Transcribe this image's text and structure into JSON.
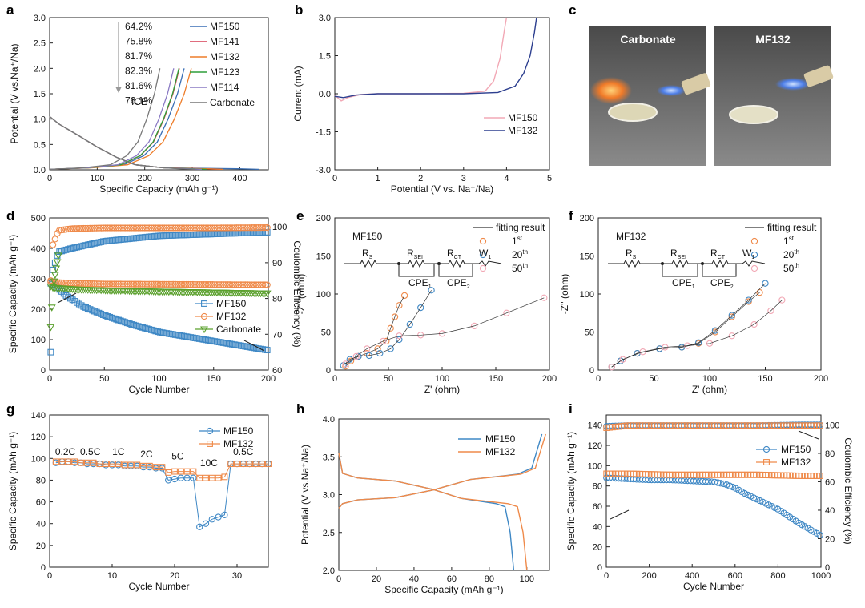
{
  "panel_letters": [
    "a",
    "b",
    "c",
    "d",
    "e",
    "f",
    "g",
    "h",
    "i"
  ],
  "photos": {
    "left_label": "Carbonate",
    "right_label": "MF132"
  },
  "colors": {
    "MF150": "#3a6fb5",
    "MF141": "#d63d53",
    "MF132": "#ee7d2a",
    "MF123": "#2f9e3a",
    "MF114": "#8a7ac4",
    "Carbonate": "#777777",
    "pink": "#f2a8b5",
    "navy": "#2d3f8f",
    "blue": "#3f88c5",
    "orange": "#ef8a4a",
    "green": "#5aa02c"
  },
  "chart_data": [
    {
      "id": "a",
      "type": "line",
      "title": "",
      "xlabel": "Specific Capacity (mAh g⁻¹)",
      "ylabel": "Potential (V vs.Na⁺/Na)",
      "xlim": [
        0,
        460
      ],
      "ylim": [
        0,
        3.0
      ],
      "xticks": [
        "0",
        "100",
        "200",
        "300",
        "400"
      ],
      "yticks": [
        "0.0",
        "0.5",
        "1.0",
        "1.5",
        "2.0",
        "2.5",
        "3.0"
      ],
      "ice_values": [
        "64.2%",
        "75.8%",
        "81.7%",
        "82.3%",
        "81.6%",
        "76.1%"
      ],
      "ice_label": "ICE",
      "series": [
        {
          "name": "MF150",
          "discharge_end": 440,
          "charge_end": 283
        },
        {
          "name": "MF141",
          "discharge_end": 360,
          "charge_end": 273
        },
        {
          "name": "MF132",
          "discharge_end": 365,
          "charge_end": 298
        },
        {
          "name": "MF123",
          "discharge_end": 330,
          "charge_end": 272
        },
        {
          "name": "MF114",
          "discharge_end": 320,
          "charge_end": 261
        },
        {
          "name": "Carbonate",
          "discharge_end": 305,
          "charge_end": 232
        }
      ]
    },
    {
      "id": "b",
      "type": "line",
      "title": "",
      "xlabel": "Potential (V vs. Na⁺/Na)",
      "ylabel": "Current (mA)",
      "xlim": [
        0,
        5
      ],
      "ylim": [
        -3.0,
        3.0
      ],
      "xticks": [
        "0",
        "1",
        "2",
        "3",
        "4",
        "5"
      ],
      "yticks": [
        "-3.0",
        "-1.5",
        "0.0",
        "1.5",
        "3.0"
      ],
      "series": [
        {
          "name": "MF150",
          "x": [
            0,
            0.15,
            0.3,
            0.6,
            1,
            2,
            3,
            3.5,
            3.7,
            3.85,
            3.95,
            4.0
          ],
          "y": [
            -0.05,
            -0.28,
            -0.15,
            -0.03,
            0,
            0,
            0.02,
            0.1,
            0.5,
            1.4,
            2.5,
            3.0
          ]
        },
        {
          "name": "MF132",
          "x": [
            0,
            0.2,
            0.5,
            1,
            2,
            3,
            3.8,
            4.2,
            4.4,
            4.55,
            4.65,
            4.7
          ],
          "y": [
            -0.1,
            -0.15,
            -0.05,
            0,
            0,
            0,
            0.05,
            0.3,
            0.8,
            1.5,
            2.4,
            3.0
          ]
        }
      ]
    },
    {
      "id": "d",
      "type": "scatter",
      "title": "",
      "xlabel": "Cycle Number",
      "ylabel": "Specific Capacity (mAh g⁻¹)",
      "y2label": "Coulombic Efficiency (%)",
      "xlim": [
        0,
        200
      ],
      "ylim": [
        0,
        500
      ],
      "y2lim": [
        60,
        102.5
      ],
      "xticks": [
        "0",
        "50",
        "100",
        "150",
        "200"
      ],
      "yticks": [
        "0",
        "100",
        "200",
        "300",
        "400",
        "500"
      ],
      "y2ticks": [
        "60",
        "70",
        "80",
        "90",
        "100"
      ],
      "series": [
        {
          "name": "MF150",
          "axis": "left",
          "x": [
            1,
            5,
            15,
            30,
            50,
            75,
            100,
            125,
            150,
            175,
            200
          ],
          "y": [
            285,
            278,
            245,
            210,
            180,
            150,
            125,
            110,
            95,
            80,
            65
          ]
        },
        {
          "name": "MF132",
          "axis": "left",
          "x": [
            1,
            5,
            25,
            50,
            100,
            150,
            200
          ],
          "y": [
            290,
            288,
            285,
            283,
            282,
            281,
            280
          ]
        },
        {
          "name": "Carbonate",
          "axis": "left",
          "x": [
            1,
            5,
            25,
            50,
            100,
            150,
            200
          ],
          "y": [
            275,
            270,
            265,
            262,
            258,
            255,
            252
          ]
        },
        {
          "name": "MF150",
          "axis": "right",
          "x": [
            1,
            3,
            8,
            20,
            50,
            100,
            150,
            200
          ],
          "y": [
            65,
            88,
            93,
            94,
            96,
            97.5,
            98,
            98.5
          ]
        },
        {
          "name": "MF132",
          "axis": "right",
          "x": [
            1,
            3,
            8,
            20,
            50,
            100,
            150,
            200
          ],
          "y": [
            85,
            95,
            99,
            99.5,
            99.7,
            99.7,
            99.7,
            99.8
          ]
        },
        {
          "name": "Carbonate",
          "axis": "right",
          "x": [
            1,
            3,
            8
          ],
          "y": [
            72,
            83,
            92
          ]
        }
      ]
    },
    {
      "id": "e",
      "type": "scatter",
      "title": "",
      "xlabel": "Z' (ohm)",
      "ylabel": "-Z'' (ohm)",
      "xlim": [
        0,
        200
      ],
      "ylim": [
        0,
        200
      ],
      "xticks": [
        "0",
        "50",
        "100",
        "150",
        "200"
      ],
      "yticks": [
        "0",
        "50",
        "100",
        "150",
        "200"
      ],
      "sample": "MF150",
      "fit_label": "fitting result",
      "circuit": [
        "R",
        "S",
        "R",
        "SEI",
        "R",
        "CT",
        "W",
        "1",
        "CPE",
        "1",
        "CPE",
        "2"
      ],
      "series": [
        {
          "name": "1st",
          "x": [
            10,
            15,
            22,
            30,
            40,
            48,
            52,
            56,
            60,
            65
          ],
          "y": [
            5,
            12,
            18,
            22,
            28,
            38,
            55,
            70,
            85,
            98
          ]
        },
        {
          "name": "20th",
          "x": [
            8,
            14,
            22,
            32,
            42,
            52,
            60,
            70,
            80,
            90
          ],
          "y": [
            6,
            14,
            18,
            19,
            22,
            28,
            40,
            60,
            82,
            105
          ]
        },
        {
          "name": "50th",
          "x": [
            10,
            20,
            30,
            45,
            60,
            80,
            100,
            130,
            160,
            195
          ],
          "y": [
            8,
            18,
            28,
            38,
            45,
            46,
            48,
            58,
            75,
            95
          ]
        }
      ],
      "legend": [
        "1",
        "st",
        "20",
        "th",
        "50",
        "th"
      ]
    },
    {
      "id": "f",
      "type": "scatter",
      "title": "",
      "xlabel": "Z' (ohm)",
      "ylabel": "-Z'' (ohm)",
      "xlim": [
        0,
        200
      ],
      "ylim": [
        0,
        200
      ],
      "xticks": [
        "0",
        "50",
        "100",
        "150",
        "200"
      ],
      "yticks": [
        "0",
        "50",
        "100",
        "150",
        "200"
      ],
      "sample": "MF132",
      "fit_label": "fitting result",
      "circuit": [
        "R",
        "S",
        "R",
        "SEI",
        "R",
        "CT",
        "W",
        "1",
        "CPE",
        "1",
        "CPE",
        "2"
      ],
      "series": [
        {
          "name": "1st",
          "x": [
            12,
            20,
            35,
            55,
            75,
            90,
            105,
            120,
            135,
            145
          ],
          "y": [
            4,
            12,
            22,
            28,
            30,
            35,
            50,
            70,
            90,
            102
          ]
        },
        {
          "name": "20th",
          "x": [
            12,
            20,
            35,
            55,
            75,
            90,
            105,
            120,
            135,
            150
          ],
          "y": [
            4,
            12,
            22,
            28,
            30,
            36,
            52,
            72,
            92,
            114
          ]
        },
        {
          "name": "50th",
          "x": [
            12,
            22,
            40,
            60,
            80,
            100,
            120,
            140,
            155,
            165
          ],
          "y": [
            4,
            14,
            24,
            30,
            32,
            35,
            45,
            60,
            78,
            92
          ]
        }
      ],
      "legend": [
        "1",
        "st",
        "20",
        "th",
        "50",
        "th"
      ]
    },
    {
      "id": "g",
      "type": "scatter",
      "title": "",
      "xlabel": "Cycle Number",
      "ylabel": "Specific Capacity (mAh g⁻¹)",
      "xlim": [
        0,
        35
      ],
      "ylim": [
        0,
        140
      ],
      "xticks": [
        "0",
        "10",
        "20",
        "30"
      ],
      "yticks": [
        "0",
        "20",
        "40",
        "60",
        "80",
        "100",
        "120",
        "140"
      ],
      "rate_labels": [
        "0.2C",
        "0.5C",
        "1C",
        "2C",
        "5C",
        "10C",
        "0.5C"
      ],
      "series": [
        {
          "name": "MF150",
          "x": [
            1,
            2,
            3,
            4,
            5,
            6,
            7,
            8,
            9,
            10,
            11,
            12,
            13,
            14,
            15,
            16,
            17,
            18,
            19,
            20,
            21,
            22,
            23,
            24,
            25,
            26,
            27,
            28,
            29,
            30,
            31,
            32,
            33,
            34,
            35
          ],
          "y": [
            96,
            97,
            97,
            96,
            96,
            95,
            95,
            95,
            94,
            94,
            94,
            93,
            93,
            93,
            92,
            92,
            91,
            91,
            80,
            81,
            82,
            82,
            82,
            37,
            40,
            44,
            46,
            48,
            95,
            95,
            95,
            95,
            95,
            95,
            95
          ]
        },
        {
          "name": "MF132",
          "x": [
            1,
            2,
            3,
            4,
            5,
            6,
            7,
            8,
            9,
            10,
            11,
            12,
            13,
            14,
            15,
            16,
            17,
            18,
            19,
            20,
            21,
            22,
            23,
            24,
            25,
            26,
            27,
            28,
            29,
            30,
            31,
            32,
            33,
            34,
            35
          ],
          "y": [
            97,
            97,
            97,
            97,
            96,
            96,
            96,
            95,
            95,
            95,
            95,
            94,
            94,
            94,
            93,
            93,
            92,
            92,
            87,
            88,
            88,
            88,
            88,
            82,
            82,
            82,
            82,
            83,
            95,
            95,
            95,
            95,
            95,
            95,
            95
          ]
        }
      ]
    },
    {
      "id": "h",
      "type": "line",
      "title": "",
      "xlabel": "Specific Capacity (mAh g⁻¹)",
      "ylabel": "Potential (V vs.Na⁺/Na)",
      "xlim": [
        0,
        112
      ],
      "ylim": [
        2.0,
        4.0
      ],
      "xticks": [
        "0",
        "20",
        "40",
        "60",
        "80",
        "100"
      ],
      "yticks": [
        "2.0",
        "2.5",
        "3.0",
        "3.5",
        "4.0"
      ],
      "series": [
        {
          "name": "MF150",
          "charge_end": 108,
          "discharge_end": 93
        },
        {
          "name": "MF132",
          "charge_end": 110,
          "discharge_end": 100
        }
      ]
    },
    {
      "id": "i",
      "type": "scatter",
      "title": "",
      "xlabel": "Cycle Number",
      "ylabel": "Specific Capacity (mAh g⁻¹)",
      "y2label": "Coulombic Efficiency (%)",
      "xlim": [
        0,
        1000
      ],
      "ylim": [
        0,
        150
      ],
      "y2lim": [
        0,
        107
      ],
      "xticks": [
        "0",
        "200",
        "400",
        "600",
        "800",
        "1000"
      ],
      "yticks": [
        "0",
        "20",
        "40",
        "60",
        "80",
        "100",
        "120",
        "140"
      ],
      "y2ticks": [
        "0",
        "20",
        "40",
        "60",
        "80",
        "100"
      ],
      "series": [
        {
          "name": "MF150",
          "axis": "left",
          "x": [
            1,
            100,
            200,
            300,
            400,
            500,
            550,
            600,
            650,
            700,
            750,
            800,
            850,
            900,
            950,
            1000
          ],
          "y": [
            88,
            87,
            86,
            86,
            85,
            84,
            82,
            78,
            72,
            67,
            62,
            57,
            50,
            43,
            37,
            31
          ]
        },
        {
          "name": "MF132",
          "axis": "left",
          "x": [
            1,
            100,
            300,
            500,
            700,
            900,
            1000
          ],
          "y": [
            92,
            92,
            91,
            91,
            91,
            90,
            90
          ]
        },
        {
          "name": "MF150",
          "axis": "right",
          "x": [
            1,
            100,
            300,
            500,
            700,
            900,
            1000
          ],
          "y": [
            99,
            99.5,
            99.5,
            99.5,
            99.5,
            100,
            100
          ]
        },
        {
          "name": "MF132",
          "axis": "right",
          "x": [
            1,
            100,
            300,
            500,
            700,
            900,
            1000
          ],
          "y": [
            98,
            99.5,
            99.5,
            99.5,
            99.5,
            99.5,
            99.5
          ]
        }
      ]
    }
  ]
}
